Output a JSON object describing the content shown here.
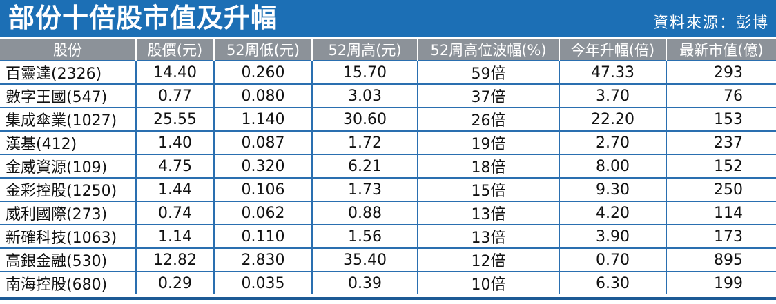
{
  "header": {
    "title": "部份十倍股市值及升幅",
    "source": "資料來源：彭博"
  },
  "table": {
    "columns": [
      "股份",
      "股價(元)",
      "52周低(元)",
      "52周高(元)",
      "52周高位波幅(%)",
      "今年升幅(倍)",
      "最新市值(億)"
    ],
    "rows": [
      [
        "百靈達(2326)",
        "14.40",
        "0.260",
        "15.70",
        "59倍",
        "47.33",
        "293"
      ],
      [
        "數字王國(547)",
        "0.77",
        "0.080",
        "3.03",
        "37倍",
        "3.70",
        "76"
      ],
      [
        "集成傘業(1027)",
        "25.55",
        "1.140",
        "30.60",
        "26倍",
        "22.20",
        "153"
      ],
      [
        "漢基(412)",
        "1.40",
        "0.087",
        "1.72",
        "19倍",
        "2.70",
        "237"
      ],
      [
        "金威資源(109)",
        "4.75",
        "0.320",
        "6.21",
        "18倍",
        "8.00",
        "152"
      ],
      [
        "金彩控股(1250)",
        "1.44",
        "0.106",
        "1.73",
        "15倍",
        "9.30",
        "250"
      ],
      [
        "威利國際(273)",
        "0.74",
        "0.062",
        "0.88",
        "13倍",
        "4.20",
        "114"
      ],
      [
        "新確科技(1063)",
        "1.14",
        "0.110",
        "1.56",
        "13倍",
        "3.90",
        "173"
      ],
      [
        "高銀金融(530)",
        "12.82",
        "2.830",
        "35.40",
        "12倍",
        "0.70",
        "895"
      ],
      [
        "南海控股(680)",
        "0.29",
        "0.035",
        "0.39",
        "10倍",
        "6.30",
        "199"
      ]
    ]
  }
}
